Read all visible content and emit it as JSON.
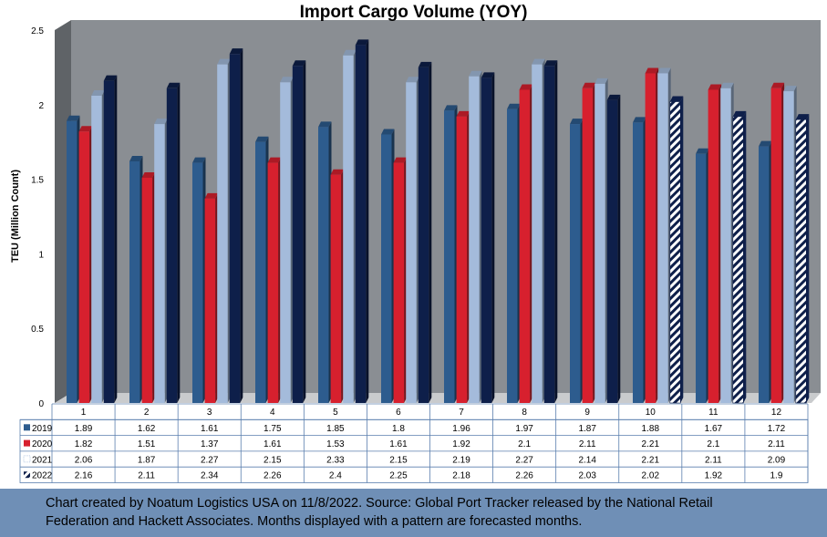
{
  "chart_data": {
    "type": "bar",
    "title": "Import Cargo Volume (YOY)",
    "ylabel": "TEU (Million Count)",
    "xlabel": "",
    "ylim": [
      0,
      2.5
    ],
    "yticks": [
      "0",
      "0.5",
      "1",
      "1.5",
      "2",
      "2.5"
    ],
    "categories": [
      "1",
      "2",
      "3",
      "4",
      "5",
      "6",
      "7",
      "8",
      "9",
      "10",
      "11",
      "12"
    ],
    "series": [
      {
        "name": "2019",
        "color": "#2d5c8e",
        "values": [
          1.89,
          1.62,
          1.61,
          1.75,
          1.85,
          1.8,
          1.96,
          1.97,
          1.87,
          1.88,
          1.67,
          1.72
        ],
        "labels": [
          "1.89",
          "1.62",
          "1.61",
          "1.75",
          "1.85",
          "1.8",
          "1.96",
          "1.97",
          "1.87",
          "1.88",
          "1.67",
          "1.72"
        ],
        "forecast_from": null
      },
      {
        "name": "2020",
        "color": "#d7202e",
        "values": [
          1.82,
          1.51,
          1.37,
          1.61,
          1.53,
          1.61,
          1.92,
          2.1,
          2.11,
          2.21,
          2.1,
          2.11
        ],
        "labels": [
          "1.82",
          "1.51",
          "1.37",
          "1.61",
          "1.53",
          "1.61",
          "1.92",
          "2.1",
          "2.11",
          "2.21",
          "2.1",
          "2.11"
        ],
        "forecast_from": null
      },
      {
        "name": "2021",
        "color": "#a4bbdb",
        "values": [
          2.06,
          1.87,
          2.27,
          2.15,
          2.33,
          2.15,
          2.19,
          2.27,
          2.14,
          2.21,
          2.11,
          2.09
        ],
        "labels": [
          "2.06",
          "1.87",
          "2.27",
          "2.15",
          "2.33",
          "2.15",
          "2.19",
          "2.27",
          "2.14",
          "2.21",
          "2.11",
          "2.09"
        ],
        "forecast_from": null
      },
      {
        "name": "2022",
        "color": "#0e1f4a",
        "values": [
          2.16,
          2.11,
          2.34,
          2.26,
          2.4,
          2.25,
          2.18,
          2.26,
          2.03,
          2.02,
          1.92,
          1.9
        ],
        "labels": [
          "2.16",
          "2.11",
          "2.34",
          "2.26",
          "2.4",
          "2.25",
          "2.18",
          "2.26",
          "2.03",
          "2.02",
          "1.92",
          "1.9"
        ],
        "forecast_from": 10
      }
    ],
    "data_table": true,
    "grid": false
  },
  "colors": {
    "plot_back": "#8a8e93",
    "plot_side": "#5f6367",
    "floor": "#c9cbcd",
    "caption_bg": "#6f8fb6"
  },
  "caption": {
    "line1": "Chart created by Noatum Logistics USA on 11/8/2022. Source: Global Port Tracker released by the National Retail",
    "line2": "Federation and Hackett Associates. Months displayed with a pattern are forecasted months."
  }
}
